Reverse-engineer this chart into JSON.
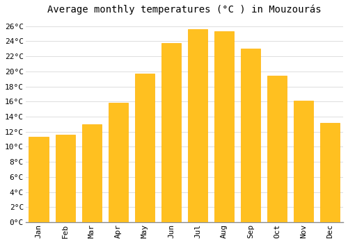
{
  "title": "Average monthly temperatures (°C ) in Mouzourás",
  "months": [
    "Jan",
    "Feb",
    "Mar",
    "Apr",
    "May",
    "Jun",
    "Jul",
    "Aug",
    "Sep",
    "Oct",
    "Nov",
    "Dec"
  ],
  "values": [
    11.3,
    11.6,
    13.0,
    15.8,
    19.7,
    23.8,
    25.6,
    25.3,
    23.0,
    19.4,
    16.1,
    13.2
  ],
  "bar_color": "#FFC020",
  "bar_edge_color": "#FFB000",
  "ylim": [
    0,
    27
  ],
  "yticks": [
    0,
    2,
    4,
    6,
    8,
    10,
    12,
    14,
    16,
    18,
    20,
    22,
    24,
    26
  ],
  "background_color": "#FFFFFF",
  "grid_color": "#DDDDDD",
  "title_fontsize": 10,
  "tick_fontsize": 8,
  "font_family": "monospace"
}
